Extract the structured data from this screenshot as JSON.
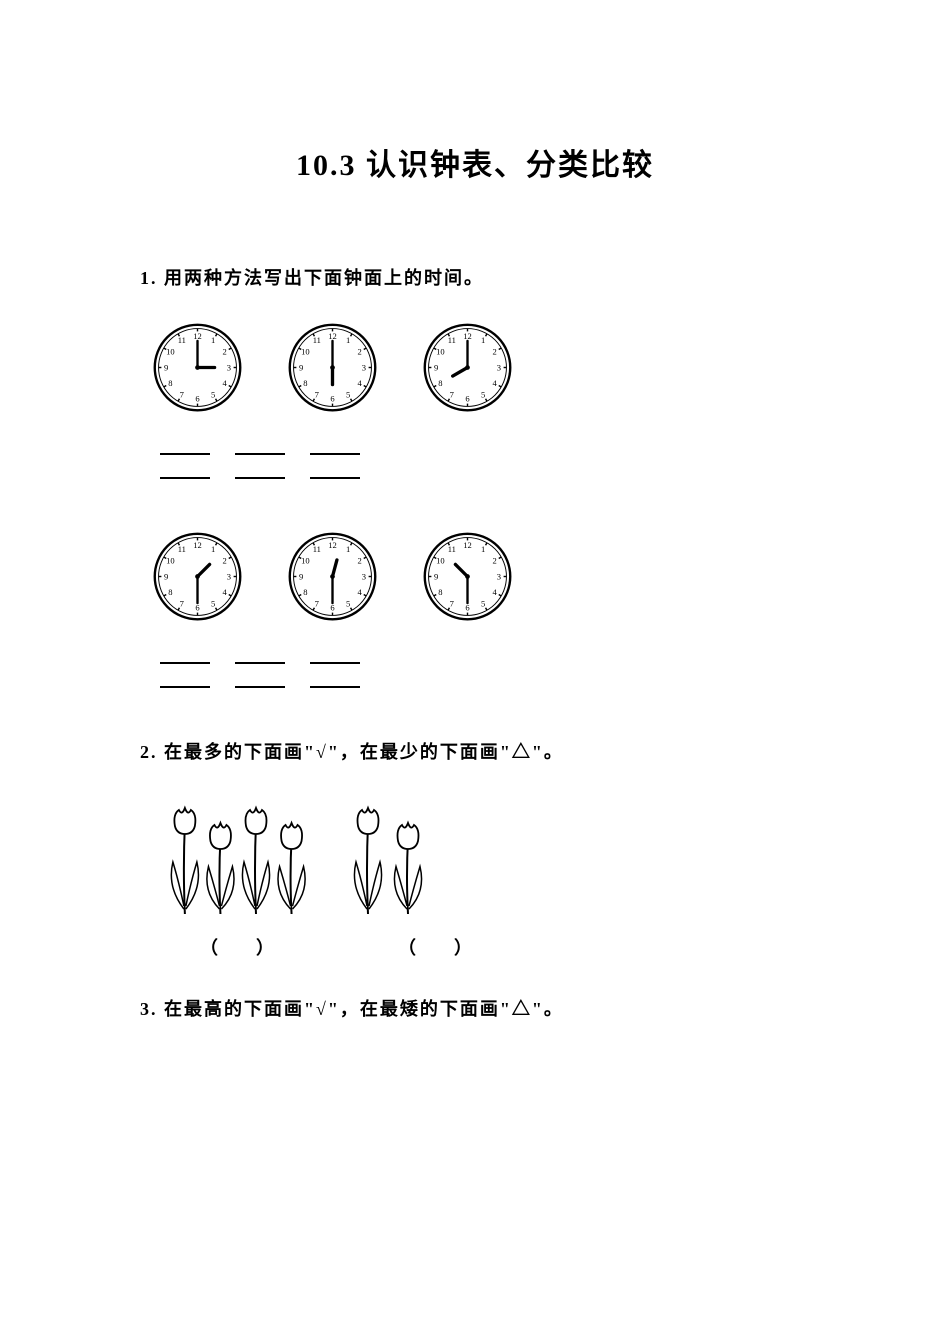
{
  "title": "10.3 认识钟表、分类比较",
  "q1": {
    "number": "1.",
    "text": "用两种方法写出下面钟面上的时间。",
    "clocks_row1": [
      {
        "hour": 3,
        "minute": 0
      },
      {
        "hour": 6,
        "minute": 0
      },
      {
        "hour": 8,
        "minute": 0
      }
    ],
    "clocks_row2": [
      {
        "hour": 1,
        "minute": 30
      },
      {
        "hour": 12,
        "minute": 30
      },
      {
        "hour": 10,
        "minute": 30
      }
    ],
    "clock_style": {
      "face_color": "#ffffff",
      "border_color": "#000000",
      "border_width": 2,
      "number_fontsize": 8,
      "hand_color": "#000000"
    }
  },
  "q2": {
    "number": "2.",
    "text": "在最多的下面画\"√\"，在最少的下面画\"△\"。",
    "groups": [
      {
        "flower_count": 4
      },
      {
        "flower_count": 2
      }
    ],
    "paren_left": "（",
    "paren_right": "）"
  },
  "q3": {
    "number": "3.",
    "text": "在最高的下面画\"√\"，在最矮的下面画\"△\"。"
  },
  "colors": {
    "background": "#ffffff",
    "text": "#000000",
    "stroke": "#000000"
  }
}
